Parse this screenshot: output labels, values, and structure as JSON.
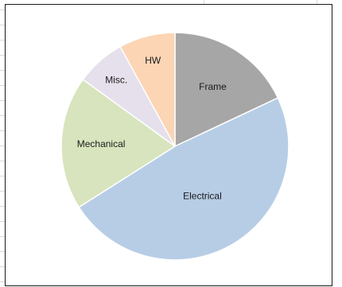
{
  "chart_data": {
    "type": "pie",
    "categories": [
      "Frame",
      "Electrical",
      "Mechanical",
      "Misc.",
      "HW"
    ],
    "values": [
      18,
      48,
      19,
      7,
      8
    ],
    "colors": [
      "#a6a6a6",
      "#b7cde6",
      "#d7e4bd",
      "#e5e0ec",
      "#fcd5b5"
    ],
    "title": "",
    "legend": "none",
    "start_angle_deg": 0,
    "direction": "clockwise"
  }
}
